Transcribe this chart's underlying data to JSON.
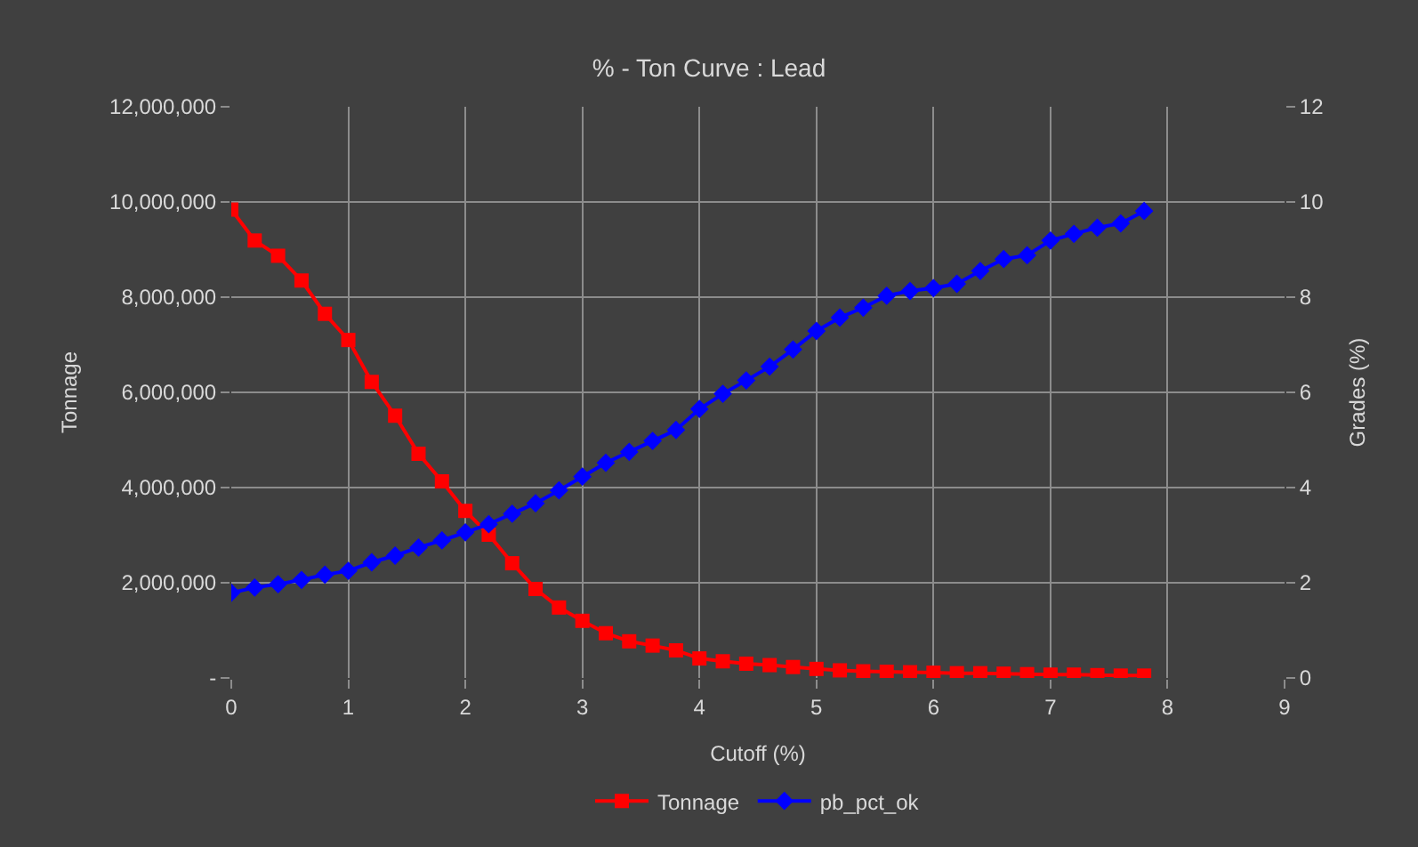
{
  "chart_data": {
    "type": "line",
    "title": "% - Ton Curve : Lead",
    "xlabel": "Cutoff (%)",
    "ylabel": "Tonnage",
    "y2label": "Grades (%)",
    "x": [
      0,
      0.2,
      0.4,
      0.6,
      0.8,
      1.0,
      1.2,
      1.4,
      1.6,
      1.8,
      2.0,
      2.2,
      2.4,
      2.6,
      2.8,
      3.0,
      3.2,
      3.4,
      3.6,
      3.8,
      4.0,
      4.2,
      4.4,
      4.6,
      4.8,
      5.0,
      5.2,
      5.4,
      5.6,
      5.8,
      6.0,
      6.2,
      6.4,
      6.6,
      6.8,
      7.0,
      7.2,
      7.4,
      7.6,
      7.8
    ],
    "series": [
      {
        "name": "Tonnage",
        "color": "#ff0000",
        "marker": "square",
        "values": [
          9840000,
          9190000,
          8870000,
          8350000,
          7650000,
          7100000,
          6220000,
          5510000,
          4710000,
          4130000,
          3510000,
          3010000,
          2410000,
          1870000,
          1480000,
          1200000,
          940000,
          770000,
          680000,
          580000,
          410000,
          350000,
          300000,
          270000,
          230000,
          190000,
          160000,
          140000,
          130000,
          120000,
          110000,
          100000,
          100000,
          90000,
          80000,
          70000,
          70000,
          60000,
          50000,
          50000
        ]
      },
      {
        "name": "pb_pct_ok",
        "color": "#0000ff",
        "marker": "diamond",
        "axis": "y2",
        "values": [
          1.79,
          1.9,
          1.97,
          2.06,
          2.17,
          2.25,
          2.43,
          2.57,
          2.74,
          2.89,
          3.06,
          3.23,
          3.45,
          3.67,
          3.94,
          4.23,
          4.52,
          4.75,
          4.98,
          5.21,
          5.65,
          5.97,
          6.25,
          6.54,
          6.9,
          7.29,
          7.57,
          7.78,
          8.03,
          8.13,
          8.19,
          8.28,
          8.55,
          8.8,
          8.88,
          9.19,
          9.33,
          9.46,
          9.55,
          9.81
        ]
      }
    ],
    "xlim": [
      0,
      9
    ],
    "xticks": [
      0,
      1,
      2,
      3,
      4,
      5,
      6,
      7,
      8,
      9
    ],
    "ylim": [
      0,
      12000000
    ],
    "yticks": [
      {
        "value": 0,
        "label": "-"
      },
      {
        "value": 2000000,
        "label": "2,000,000"
      },
      {
        "value": 4000000,
        "label": "4,000,000"
      },
      {
        "value": 6000000,
        "label": "6,000,000"
      },
      {
        "value": 8000000,
        "label": "8,000,000"
      },
      {
        "value": 10000000,
        "label": "10,000,000"
      },
      {
        "value": 12000000,
        "label": "12,000,000"
      }
    ],
    "y2lim": [
      0,
      12
    ],
    "y2ticks": [
      0,
      2,
      4,
      6,
      8,
      10,
      12
    ],
    "grid": true,
    "legend": "bottom",
    "line_style": "solid"
  }
}
